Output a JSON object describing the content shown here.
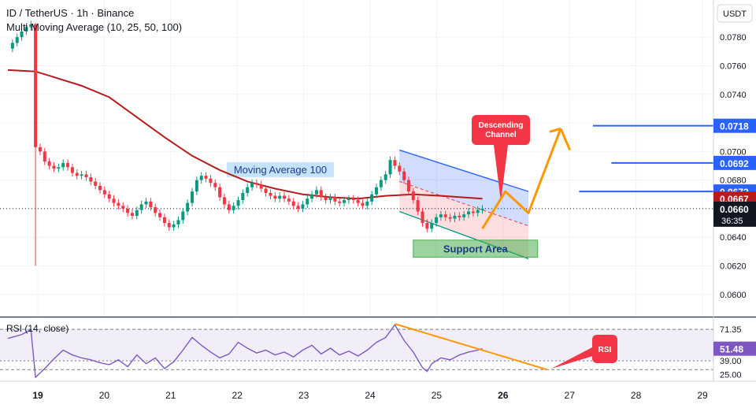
{
  "header": {
    "title": "ID / TetherUS · 1h · Binance",
    "indicator": "Multi Moving Average (10, 25, 50, 100)",
    "currency": "USDT"
  },
  "chart_data": {
    "type": "candlestick",
    "x_ticks": [
      "19",
      "20",
      "21",
      "22",
      "23",
      "24",
      "25",
      "26",
      "27",
      "28",
      "29"
    ],
    "y_ticks": [
      "0.0780",
      "0.0760",
      "0.0740",
      "0.0720",
      "0.0700",
      "0.0680",
      "0.0660",
      "0.0640",
      "0.0620",
      "0.0600"
    ],
    "ylim": [
      0.0585,
      0.0806
    ],
    "price_labels": [
      {
        "text": "0.0718",
        "value": 0.0718,
        "color": "#2962ff"
      },
      {
        "text": "0.0692",
        "value": 0.0692,
        "color": "#2962ff"
      },
      {
        "text": "0.0672",
        "value": 0.0672,
        "color": "#2962ff"
      },
      {
        "text": "0.0667",
        "value": 0.0667,
        "color": "#b71c1c"
      },
      {
        "text": "0.0660",
        "value": 0.066,
        "color": "#131722"
      }
    ],
    "countdown": "36:35",
    "levels": [
      0.0718,
      0.0692,
      0.0672
    ],
    "current_price": 0.066,
    "annotations": {
      "ma_label": "Moving Average 100",
      "channel_label": "Descending Channel",
      "support_label": "Support Area",
      "rsi_label": "RSI"
    },
    "price_path": [
      [
        0,
        0.0772
      ],
      [
        1,
        0.0776
      ],
      [
        2,
        0.078
      ],
      [
        3,
        0.0784
      ],
      [
        4,
        0.0787
      ],
      [
        5,
        0.0789
      ],
      [
        6,
        0.0703
      ],
      [
        7,
        0.07
      ],
      [
        8,
        0.0693
      ],
      [
        9,
        0.069
      ],
      [
        10,
        0.0688
      ],
      [
        11,
        0.0689
      ],
      [
        12,
        0.0692
      ],
      [
        13,
        0.0689
      ],
      [
        14,
        0.0685
      ],
      [
        15,
        0.0683
      ],
      [
        16,
        0.0684
      ],
      [
        17,
        0.0682
      ],
      [
        18,
        0.0679
      ],
      [
        19,
        0.0676
      ],
      [
        20,
        0.0673
      ],
      [
        21,
        0.067
      ],
      [
        22,
        0.0667
      ],
      [
        23,
        0.0664
      ],
      [
        24,
        0.0662
      ],
      [
        25,
        0.066
      ],
      [
        26,
        0.0657
      ],
      [
        27,
        0.0655
      ],
      [
        28,
        0.0659
      ],
      [
        29,
        0.0663
      ],
      [
        30,
        0.0665
      ],
      [
        31,
        0.0661
      ],
      [
        32,
        0.0657
      ],
      [
        33,
        0.0654
      ],
      [
        34,
        0.065
      ],
      [
        35,
        0.0647
      ],
      [
        36,
        0.0649
      ],
      [
        37,
        0.0652
      ],
      [
        38,
        0.0658
      ],
      [
        39,
        0.0664
      ],
      [
        40,
        0.0672
      ],
      [
        41,
        0.068
      ],
      [
        42,
        0.0683
      ],
      [
        43,
        0.0681
      ],
      [
        44,
        0.0678
      ],
      [
        45,
        0.0675
      ],
      [
        46,
        0.0668
      ],
      [
        47,
        0.0663
      ],
      [
        48,
        0.0659
      ],
      [
        49,
        0.0662
      ],
      [
        50,
        0.0666
      ],
      [
        51,
        0.0671
      ],
      [
        52,
        0.0675
      ],
      [
        53,
        0.0678
      ],
      [
        54,
        0.0677
      ],
      [
        55,
        0.0674
      ],
      [
        56,
        0.0671
      ],
      [
        57,
        0.0669
      ],
      [
        58,
        0.0667
      ],
      [
        59,
        0.0669
      ],
      [
        60,
        0.0667
      ],
      [
        61,
        0.0665
      ],
      [
        62,
        0.0662
      ],
      [
        63,
        0.066
      ],
      [
        64,
        0.0663
      ],
      [
        65,
        0.0667
      ],
      [
        66,
        0.067
      ],
      [
        67,
        0.0673
      ],
      [
        68,
        0.0668
      ],
      [
        69,
        0.0666
      ],
      [
        70,
        0.0668
      ],
      [
        71,
        0.0665
      ],
      [
        72,
        0.0664
      ],
      [
        73,
        0.0666
      ],
      [
        74,
        0.0667
      ],
      [
        75,
        0.0666
      ],
      [
        76,
        0.0664
      ],
      [
        77,
        0.0662
      ],
      [
        78,
        0.0665
      ],
      [
        79,
        0.067
      ],
      [
        80,
        0.0675
      ],
      [
        81,
        0.068
      ],
      [
        82,
        0.0684
      ],
      [
        83,
        0.0694
      ],
      [
        84,
        0.069
      ],
      [
        85,
        0.0686
      ],
      [
        86,
        0.068
      ],
      [
        87,
        0.0672
      ],
      [
        88,
        0.0666
      ],
      [
        89,
        0.0658
      ],
      [
        90,
        0.065
      ],
      [
        91,
        0.0646
      ],
      [
        92,
        0.065
      ],
      [
        93,
        0.0654
      ],
      [
        94,
        0.0656
      ],
      [
        95,
        0.0654
      ],
      [
        96,
        0.0653
      ],
      [
        97,
        0.0655
      ],
      [
        98,
        0.0654
      ],
      [
        99,
        0.0656
      ],
      [
        100,
        0.0658
      ],
      [
        101,
        0.0657
      ],
      [
        102,
        0.0659
      ],
      [
        103,
        0.066
      ]
    ],
    "ma100": [
      [
        0,
        0.0757
      ],
      [
        6,
        0.0756
      ],
      [
        10,
        0.0752
      ],
      [
        16,
        0.0746
      ],
      [
        22,
        0.0738
      ],
      [
        28,
        0.0724
      ],
      [
        34,
        0.071
      ],
      [
        40,
        0.0697
      ],
      [
        46,
        0.0687
      ],
      [
        52,
        0.0679
      ],
      [
        58,
        0.0674
      ],
      [
        64,
        0.067
      ],
      [
        70,
        0.0668
      ],
      [
        76,
        0.0667
      ],
      [
        82,
        0.0669
      ],
      [
        88,
        0.067
      ],
      [
        94,
        0.0669
      ],
      [
        103,
        0.0667
      ]
    ],
    "projection": [
      [
        103,
        0.0646
      ],
      [
        108,
        0.0672
      ],
      [
        113,
        0.0657
      ],
      [
        120,
        0.0716
      ],
      [
        122,
        0.0701
      ]
    ],
    "rsi": {
      "title": "RSI (14, close)",
      "ticks": [
        "71.35",
        "39.00",
        "25.00"
      ],
      "current": "51.48",
      "ylim": [
        18,
        82
      ],
      "values": [
        [
          0,
          62
        ],
        [
          3,
          66
        ],
        [
          5,
          71
        ],
        [
          6,
          22
        ],
        [
          8,
          31
        ],
        [
          10,
          41
        ],
        [
          12,
          50
        ],
        [
          14,
          45
        ],
        [
          16,
          42
        ],
        [
          18,
          40
        ],
        [
          20,
          37
        ],
        [
          22,
          35
        ],
        [
          24,
          40
        ],
        [
          26,
          33
        ],
        [
          28,
          45
        ],
        [
          30,
          36
        ],
        [
          32,
          42
        ],
        [
          34,
          31
        ],
        [
          36,
          38
        ],
        [
          38,
          50
        ],
        [
          40,
          63
        ],
        [
          42,
          55
        ],
        [
          44,
          48
        ],
        [
          46,
          42
        ],
        [
          48,
          46
        ],
        [
          50,
          58
        ],
        [
          52,
          52
        ],
        [
          54,
          47
        ],
        [
          56,
          50
        ],
        [
          58,
          45
        ],
        [
          60,
          48
        ],
        [
          62,
          43
        ],
        [
          64,
          50
        ],
        [
          66,
          55
        ],
        [
          68,
          46
        ],
        [
          70,
          52
        ],
        [
          72,
          45
        ],
        [
          74,
          49
        ],
        [
          76,
          44
        ],
        [
          78,
          50
        ],
        [
          80,
          58
        ],
        [
          82,
          63
        ],
        [
          84,
          76
        ],
        [
          86,
          60
        ],
        [
          88,
          48
        ],
        [
          90,
          32
        ],
        [
          91,
          28
        ],
        [
          92,
          36
        ],
        [
          94,
          42
        ],
        [
          96,
          40
        ],
        [
          98,
          45
        ],
        [
          100,
          48
        ],
        [
          102,
          50
        ],
        [
          103,
          51.5
        ]
      ]
    }
  }
}
